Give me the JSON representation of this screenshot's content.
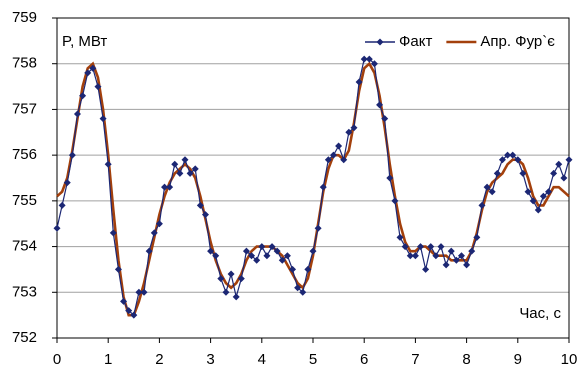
{
  "chart_data": {
    "type": "line",
    "y_label": "P, МВт",
    "x_label": "Час, с",
    "x": [
      0,
      0.1,
      0.2,
      0.3,
      0.4,
      0.5,
      0.6,
      0.7,
      0.8,
      0.9,
      1,
      1.1,
      1.2,
      1.3,
      1.4,
      1.5,
      1.6,
      1.7,
      1.8,
      1.9,
      2,
      2.1,
      2.2,
      2.3,
      2.4,
      2.5,
      2.6,
      2.7,
      2.8,
      2.9,
      3,
      3.1,
      3.2,
      3.3,
      3.4,
      3.5,
      3.6,
      3.7,
      3.8,
      3.9,
      4,
      4.1,
      4.2,
      4.3,
      4.4,
      4.5,
      4.6,
      4.7,
      4.8,
      4.9,
      5,
      5.1,
      5.2,
      5.3,
      5.4,
      5.5,
      5.6,
      5.7,
      5.8,
      5.9,
      6,
      6.1,
      6.2,
      6.3,
      6.4,
      6.5,
      6.6,
      6.7,
      6.8,
      6.9,
      7,
      7.1,
      7.2,
      7.3,
      7.4,
      7.5,
      7.6,
      7.7,
      7.8,
      7.9,
      8,
      8.1,
      8.2,
      8.3,
      8.4,
      8.5,
      8.6,
      8.7,
      8.8,
      8.9,
      9,
      9.1,
      9.2,
      9.3,
      9.4,
      9.5,
      9.6,
      9.7,
      9.8,
      9.9,
      10
    ],
    "series": [
      {
        "name": "Факт",
        "color": "#1c2774",
        "marker": "diamond",
        "values": [
          754.4,
          754.9,
          755.4,
          756.0,
          756.9,
          757.3,
          757.8,
          757.9,
          757.5,
          756.8,
          755.8,
          754.3,
          753.5,
          752.8,
          752.6,
          752.5,
          753.0,
          753.0,
          753.9,
          754.3,
          754.5,
          755.3,
          755.3,
          755.8,
          755.6,
          755.9,
          755.6,
          755.7,
          754.9,
          754.7,
          753.9,
          753.8,
          753.3,
          753.0,
          753.4,
          752.9,
          753.3,
          753.9,
          753.8,
          753.7,
          754.0,
          753.8,
          754.0,
          753.9,
          753.7,
          753.8,
          753.5,
          753.1,
          753.0,
          753.5,
          753.9,
          754.4,
          755.3,
          755.9,
          756.0,
          756.2,
          755.9,
          756.5,
          756.6,
          757.6,
          758.1,
          758.1,
          758.0,
          757.1,
          756.8,
          755.5,
          755.0,
          754.2,
          754.0,
          753.8,
          753.8,
          754.0,
          753.5,
          754.0,
          753.8,
          754.0,
          753.6,
          753.9,
          753.7,
          753.8,
          753.6,
          753.9,
          754.2,
          754.9,
          755.3,
          755.2,
          755.6,
          755.9,
          756.0,
          756.0,
          755.9,
          755.6,
          755.2,
          755.0,
          754.8,
          755.1,
          755.2,
          755.6,
          755.8,
          755.5,
          755.9
        ]
      },
      {
        "name": "Апр. Фур`є",
        "color": "#a3400c",
        "values": [
          755.1,
          755.2,
          755.5,
          756.1,
          756.8,
          757.5,
          757.9,
          758.0,
          757.7,
          757.0,
          756.0,
          754.8,
          753.7,
          752.9,
          752.5,
          752.5,
          752.8,
          753.2,
          753.7,
          754.2,
          754.7,
          755.1,
          755.4,
          755.6,
          755.7,
          755.8,
          755.7,
          755.5,
          755.1,
          754.6,
          754.1,
          753.7,
          753.4,
          753.2,
          753.1,
          753.2,
          753.4,
          753.7,
          753.9,
          754.0,
          754.0,
          754.0,
          754.0,
          753.9,
          753.8,
          753.6,
          753.4,
          753.2,
          753.1,
          753.3,
          753.8,
          754.5,
          755.2,
          755.7,
          756.0,
          756.0,
          755.9,
          756.1,
          756.7,
          757.4,
          757.9,
          758.0,
          757.8,
          757.3,
          756.6,
          755.8,
          755.1,
          754.5,
          754.1,
          753.9,
          753.9,
          754.0,
          754.0,
          753.9,
          753.8,
          753.8,
          753.8,
          753.7,
          753.7,
          753.7,
          753.7,
          753.9,
          754.3,
          754.8,
          755.2,
          755.4,
          755.5,
          755.6,
          755.8,
          755.9,
          755.9,
          755.8,
          755.5,
          755.1,
          754.9,
          754.9,
          755.1,
          755.3,
          755.3,
          755.2,
          755.1
        ]
      }
    ],
    "xlim": [
      0,
      10
    ],
    "xticks": [
      0,
      1,
      2,
      3,
      4,
      5,
      6,
      7,
      8,
      9,
      10
    ],
    "ylim": [
      752,
      759
    ],
    "yticks": [
      752,
      753,
      754,
      755,
      756,
      757,
      758,
      759
    ],
    "grid": true,
    "legend": "top-right"
  }
}
